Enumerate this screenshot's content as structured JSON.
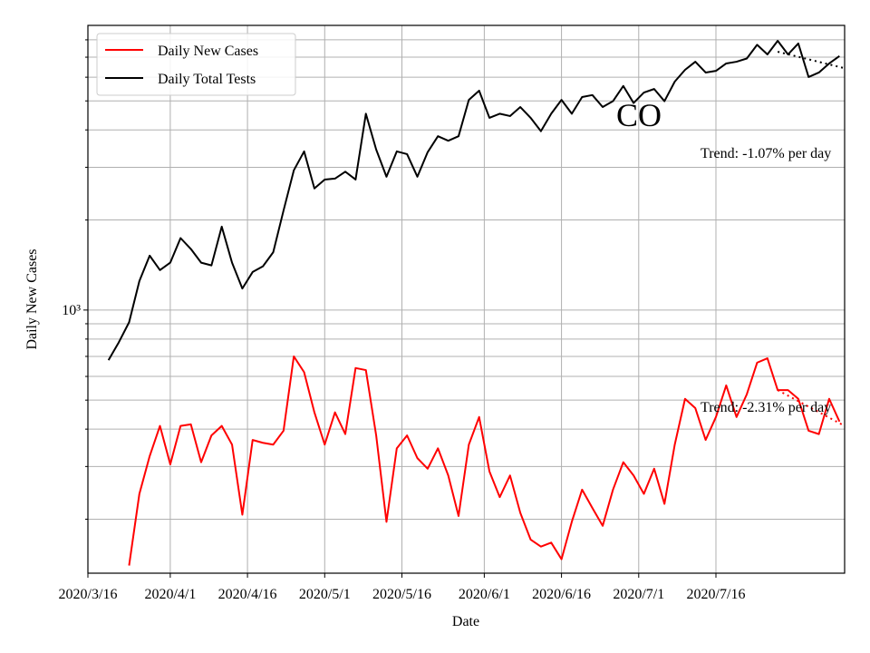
{
  "chart_data": {
    "type": "line",
    "xlabel": "Date",
    "ylabel": "Daily New Cases",
    "log_y": true,
    "grid": true,
    "legend": "upper left",
    "annotations": [
      "CO",
      "Trend: -1.07% per day",
      "Trend: -2.31% per day"
    ],
    "xlim": [
      "2020/3/16",
      "2020/8/10"
    ],
    "xticks": [
      "2020/3/16",
      "2020/4/1",
      "2020/4/16",
      "2020/5/1",
      "2020/5/16",
      "2020/6/1",
      "2020/6/16",
      "2020/7/1",
      "2020/7/16"
    ],
    "ylim": [
      132,
      8940
    ],
    "yticks": [
      {
        "value": 1000,
        "label": "10³"
      }
    ],
    "minor_yticks": [
      200,
      300,
      400,
      500,
      600,
      700,
      800,
      900,
      2000,
      3000,
      4000,
      5000,
      6000,
      7000,
      8000
    ],
    "x": [
      "2020/3/20",
      "2020/3/22",
      "2020/3/24",
      "2020/3/26",
      "2020/3/28",
      "2020/3/30",
      "2020/4/1",
      "2020/4/3",
      "2020/4/5",
      "2020/4/7",
      "2020/4/9",
      "2020/4/11",
      "2020/4/13",
      "2020/4/15",
      "2020/4/17",
      "2020/4/19",
      "2020/4/21",
      "2020/4/23",
      "2020/4/25",
      "2020/4/27",
      "2020/4/29",
      "2020/5/1",
      "2020/5/3",
      "2020/5/5",
      "2020/5/7",
      "2020/5/9",
      "2020/5/11",
      "2020/5/13",
      "2020/5/15",
      "2020/5/17",
      "2020/5/19",
      "2020/5/21",
      "2020/5/23",
      "2020/5/25",
      "2020/5/27",
      "2020/5/29",
      "2020/5/31",
      "2020/6/2",
      "2020/6/4",
      "2020/6/6",
      "2020/6/8",
      "2020/6/10",
      "2020/6/12",
      "2020/6/14",
      "2020/6/16",
      "2020/6/18",
      "2020/6/20",
      "2020/6/22",
      "2020/6/24",
      "2020/6/26",
      "2020/6/28",
      "2020/6/30",
      "2020/7/2",
      "2020/7/4",
      "2020/7/6",
      "2020/7/8",
      "2020/7/10",
      "2020/7/12",
      "2020/7/14",
      "2020/7/16",
      "2020/7/18",
      "2020/7/20",
      "2020/7/22",
      "2020/7/24",
      "2020/7/26",
      "2020/7/28",
      "2020/7/30",
      "2020/8/1",
      "2020/8/3",
      "2020/8/5",
      "2020/8/7",
      "2020/8/9"
    ],
    "series": [
      {
        "name": "Daily New Cases",
        "color": "#ff0000",
        "values": [
          null,
          null,
          140,
          243,
          325,
          410,
          305,
          410,
          415,
          310,
          381,
          410,
          355,
          207,
          368,
          360,
          355,
          395,
          700,
          620,
          455,
          355,
          455,
          385,
          640,
          630,
          381,
          196,
          345,
          381,
          320,
          295,
          345,
          280,
          205,
          355,
          439,
          289,
          237,
          280,
          210,
          171,
          162,
          167,
          147,
          196,
          251,
          218,
          190,
          251,
          310,
          280,
          243,
          295,
          225,
          355,
          505,
          470,
          368,
          439,
          560,
          439,
          523,
          667,
          690,
          540,
          540,
          505,
          395,
          385,
          505,
          424
        ]
      },
      {
        "name": "Daily Total Tests",
        "color": "#000000",
        "values": [
          680,
          780,
          910,
          1250,
          1520,
          1360,
          1440,
          1740,
          1600,
          1440,
          1410,
          1900,
          1440,
          1180,
          1340,
          1400,
          1560,
          2150,
          2930,
          3390,
          2550,
          2730,
          2750,
          2900,
          2730,
          4530,
          3440,
          2790,
          3390,
          3320,
          2790,
          3370,
          3810,
          3680,
          3810,
          5040,
          5410,
          4390,
          4530,
          4450,
          4770,
          4390,
          3960,
          4530,
          5040,
          4530,
          5150,
          5230,
          4770,
          4990,
          5610,
          4920,
          5330,
          5480,
          4990,
          5800,
          6350,
          6760,
          6220,
          6300,
          6670,
          6760,
          6930,
          7700,
          7150,
          7940,
          7150,
          7780,
          6010,
          6220,
          6670,
          7060
        ]
      }
    ],
    "trend_lines": [
      {
        "color": "#000000",
        "x": [
          "2020/7/28",
          "2020/8/10"
        ],
        "values": [
          7300,
          6430
        ]
      },
      {
        "color": "#ff0000",
        "x": [
          "2020/7/28",
          "2020/8/10"
        ],
        "values": [
          540,
          410
        ]
      }
    ]
  }
}
